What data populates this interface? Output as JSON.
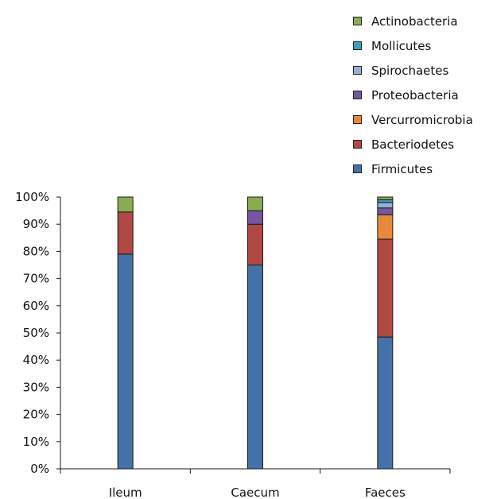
{
  "chart_data": {
    "type": "bar",
    "stacked": true,
    "categories": [
      "Ileum",
      "Caecum",
      "Faeces"
    ],
    "ylim": [
      0,
      100
    ],
    "yticks": [
      "0%",
      "10%",
      "20%",
      "30%",
      "40%",
      "50%",
      "60%",
      "70%",
      "80%",
      "90%",
      "100%"
    ],
    "grid": false,
    "legend_position": "top-right",
    "series": [
      {
        "name": "Firmicutes",
        "color": "#4472a8",
        "values": [
          79,
          75,
          48.5
        ]
      },
      {
        "name": "Bacteriodetes",
        "color": "#b04844",
        "values": [
          15.5,
          15,
          36
        ]
      },
      {
        "name": "Vercurromicrobia",
        "color": "#e8893a",
        "values": [
          0,
          0,
          9
        ]
      },
      {
        "name": "Proteobacteria",
        "color": "#7457a0",
        "values": [
          0,
          5,
          2.5
        ]
      },
      {
        "name": "Spirochaetes",
        "color": "#95b0d8",
        "values": [
          0,
          0,
          2
        ]
      },
      {
        "name": "Mollicutes",
        "color": "#3aa0b8",
        "values": [
          0,
          0,
          1
        ]
      },
      {
        "name": "Actinobacteria",
        "color": "#8aac52",
        "values": [
          5.5,
          5,
          1
        ]
      }
    ]
  }
}
